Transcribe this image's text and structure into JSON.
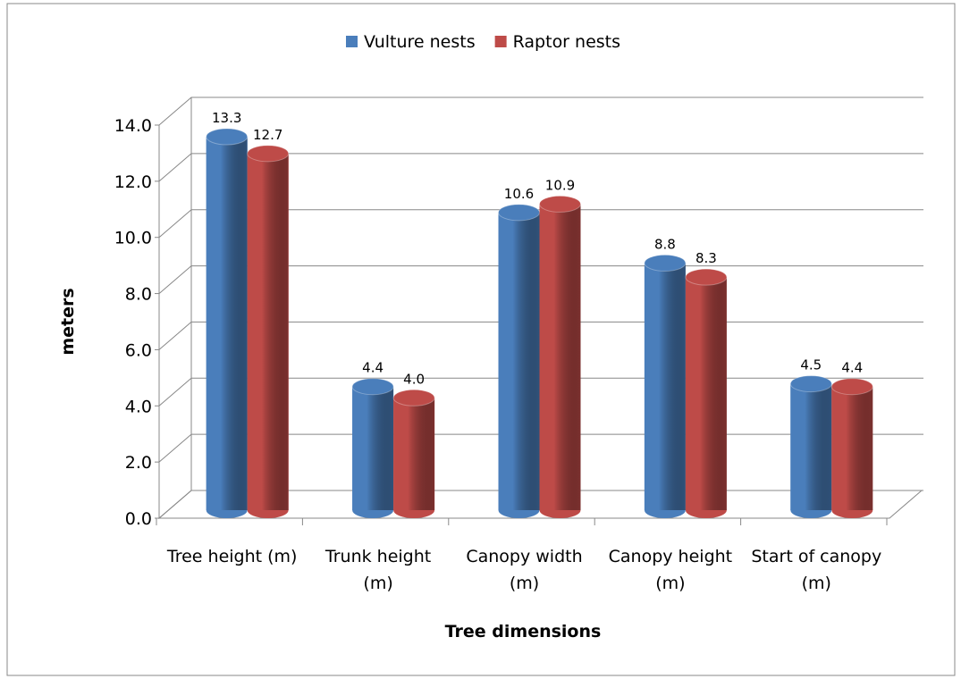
{
  "chart_data": {
    "type": "bar3d",
    "x_label": "Tree dimensions",
    "y_label": "meters",
    "categories": [
      "Tree height (m)",
      "Trunk height (m)",
      "Canopy width (m)",
      "Canopy height (m)",
      "Start of canopy (m)"
    ],
    "series": [
      {
        "name": "Vulture nests",
        "color": "#4a7ebb",
        "values": [
          13.3,
          4.4,
          10.6,
          8.8,
          4.5
        ],
        "value_labels": [
          "13.3",
          "4.4",
          "10.6",
          "8.8",
          "4.5"
        ]
      },
      {
        "name": "Raptor nests",
        "color": "#be4b48",
        "values": [
          12.7,
          4.0,
          10.9,
          8.3,
          4.4
        ],
        "value_labels": [
          "12.7",
          "4.0",
          "10.9",
          "8.3",
          "4.4"
        ]
      }
    ],
    "ylim": [
      0,
      14
    ],
    "yticks": [
      {
        "value": 0,
        "label": "0.0"
      },
      {
        "value": 2,
        "label": "2.0"
      },
      {
        "value": 4,
        "label": "4.0"
      },
      {
        "value": 6,
        "label": "6.0"
      },
      {
        "value": 8,
        "label": "8.0"
      },
      {
        "value": 10,
        "label": "10.0"
      },
      {
        "value": 12,
        "label": "12.0"
      },
      {
        "value": 14,
        "label": "14.0"
      }
    ],
    "grid": true,
    "legend": "top"
  }
}
